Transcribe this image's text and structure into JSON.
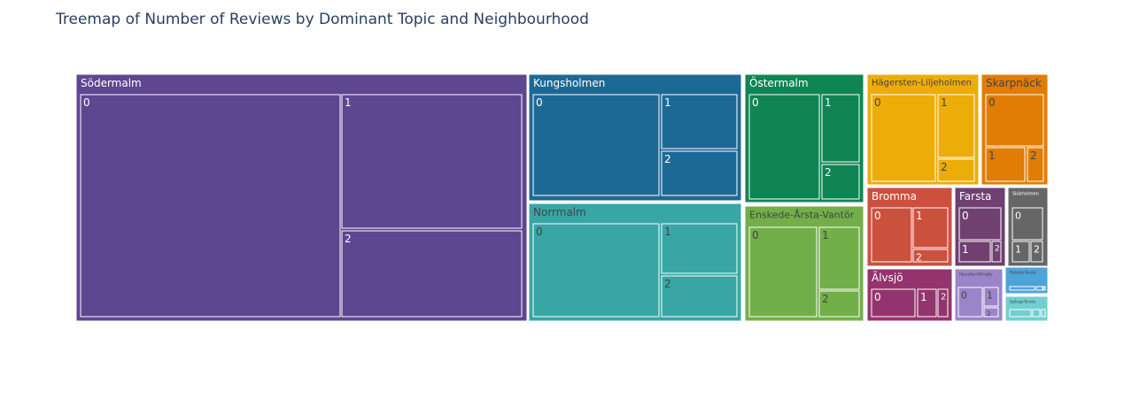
{
  "chart_data": {
    "type": "treemap",
    "title": "Treemap of Number of Reviews by Dominant Topic and Neighbourhood",
    "hierarchy": [
      "Neighbourhood",
      "Dominant Topic"
    ],
    "neighbourhoods": [
      {
        "name": "Södermalm",
        "color": "#5f4690",
        "label_color": "#ffffff",
        "topics": [
          {
            "label": "0",
            "value": 23640
          },
          {
            "label": "1",
            "value": 12050
          },
          {
            "label": "2",
            "value": 7710
          }
        ]
      },
      {
        "name": "Kungsholmen",
        "color": "#1d6996",
        "label_color": "#ffffff",
        "topics": [
          {
            "label": "0",
            "value": 6690
          },
          {
            "label": "1",
            "value": 2990
          },
          {
            "label": "2",
            "value": 2550
          }
        ]
      },
      {
        "name": "Norrmalm",
        "color": "#38a6a5",
        "label_color": "#444444",
        "topics": [
          {
            "label": "0",
            "value": 5520
          },
          {
            "label": "1",
            "value": 2940
          },
          {
            "label": "2",
            "value": 2350
          }
        ]
      },
      {
        "name": "Östermalm",
        "color": "#0f8554",
        "label_color": "#ffffff",
        "topics": [
          {
            "label": "0",
            "value": 4710
          },
          {
            "label": "1",
            "value": 2110
          },
          {
            "label": "2",
            "value": 1030
          }
        ]
      },
      {
        "name": "Enskede-Årsta-Vantör",
        "color": "#73af48",
        "label_color": "#444444",
        "topics": [
          {
            "label": "0",
            "value": 4520
          },
          {
            "label": "1",
            "value": 1910
          },
          {
            "label": "2",
            "value": 920
          }
        ]
      },
      {
        "name": "Hägersten-Liljeholmen",
        "color": "#edad08",
        "label_color": "#444444",
        "topics": [
          {
            "label": "0",
            "value": 3390
          },
          {
            "label": "1",
            "value": 1770
          },
          {
            "label": "2",
            "value": 620
          }
        ]
      },
      {
        "name": "Skarpnäck",
        "color": "#e17c05",
        "label_color": "#444444",
        "topics": [
          {
            "label": "0",
            "value": 1770
          },
          {
            "label": "1",
            "value": 820
          },
          {
            "label": "2",
            "value": 350
          }
        ]
      },
      {
        "name": "Bromma",
        "color": "#cc503e",
        "label_color": "#ffffff",
        "topics": [
          {
            "label": "0",
            "value": 1730
          },
          {
            "label": "1",
            "value": 1410
          },
          {
            "label": "2",
            "value": 390
          }
        ]
      },
      {
        "name": "Farsta",
        "color": "#6f4070",
        "label_color": "#ffffff",
        "topics": [
          {
            "label": "0",
            "value": 1290
          },
          {
            "label": "1",
            "value": 750
          },
          {
            "label": "2",
            "value": 200
          }
        ]
      },
      {
        "name": "Skärholmen",
        "color": "#666666",
        "label_color": "#ffffff",
        "topics": [
          {
            "label": "0",
            "value": 660
          },
          {
            "label": "1",
            "value": 300
          },
          {
            "label": "2",
            "value": 240
          }
        ]
      },
      {
        "name": "Älvsjö",
        "color": "#94346e",
        "label_color": "#ffffff",
        "topics": [
          {
            "label": "0",
            "value": 1320
          },
          {
            "label": "1",
            "value": 520
          },
          {
            "label": "2",
            "value": 160
          }
        ]
      },
      {
        "name": "Hässelby-Vällingby",
        "color": "#9b84c8",
        "label_color": "#444444",
        "topics": [
          {
            "label": "0",
            "value": 550
          },
          {
            "label": "1",
            "value": 310
          },
          {
            "label": "2",
            "value": 120
          }
        ]
      },
      {
        "name": "Rinkeby-Tensta",
        "color": "#4ea3d8",
        "label_color": "#444444",
        "topics": [
          {
            "label": "0",
            "value": 400
          },
          {
            "label": "1",
            "value": 180
          },
          {
            "label": "2",
            "value": 90
          }
        ]
      },
      {
        "name": "Spånga-Tensta",
        "color": "#72cfd0",
        "label_color": "#444444",
        "topics": [
          {
            "label": "0",
            "value": 450
          },
          {
            "label": "1",
            "value": 180
          },
          {
            "label": "2",
            "value": 70
          }
        ]
      }
    ]
  }
}
